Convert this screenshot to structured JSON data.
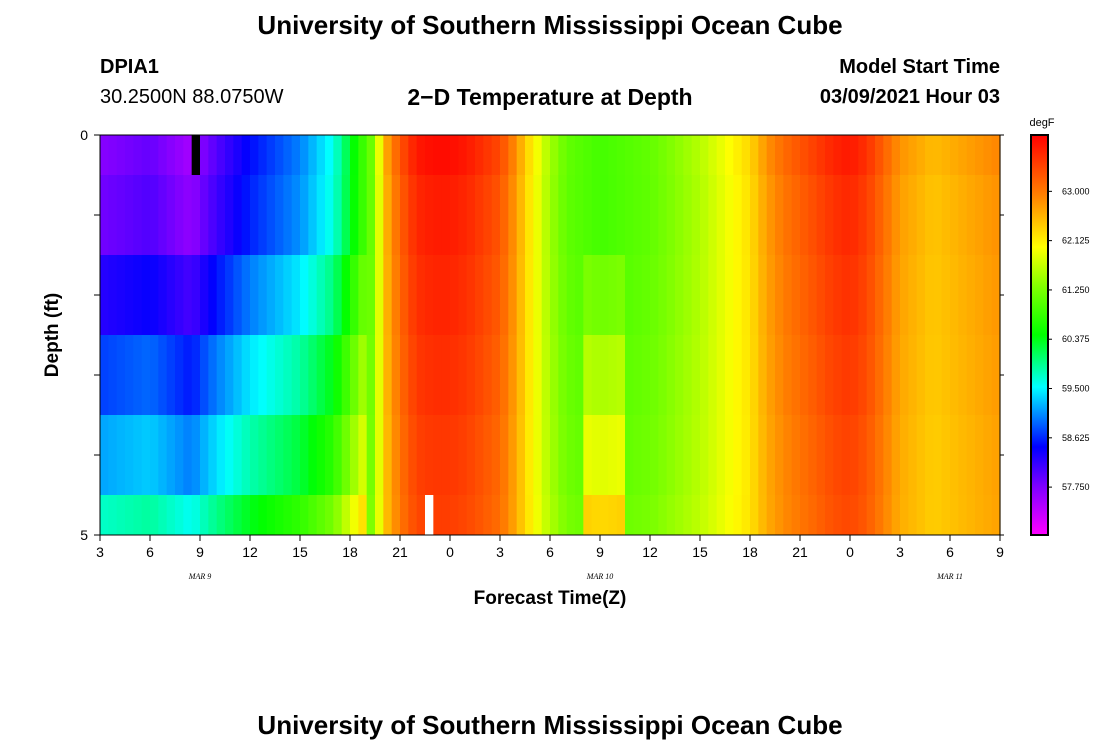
{
  "header": {
    "title": "University of Southern Mississippi Ocean Cube",
    "station": "DPIA1",
    "coords": "30.2500N 88.0750W",
    "heading": "2−D Temperature at Depth",
    "model_start_label": "Model Start Time",
    "model_start_value": "03/09/2021 Hour 03"
  },
  "footer": {
    "title": "University of Southern Mississippi Ocean Cube"
  },
  "chart_data": {
    "type": "heatmap",
    "xlabel": "Forecast Time(Z)",
    "ylabel": "Depth (ft)",
    "x_tick_labels": [
      "3",
      "6",
      "9",
      "12",
      "15",
      "18",
      "21",
      "0",
      "3",
      "6",
      "9",
      "12",
      "15",
      "18",
      "21",
      "0",
      "3",
      "6",
      "9"
    ],
    "x_date_labels": [
      "MAR  9",
      "MAR  10",
      "MAR  11"
    ],
    "y_tick_labels": [
      "0",
      "5"
    ],
    "ylim": [
      0,
      5
    ],
    "x_hours_range": [
      0,
      54
    ],
    "colorbar": {
      "unit": "degF",
      "tick_labels": [
        "57.750",
        "58.625",
        "59.500",
        "60.375",
        "61.250",
        "62.125",
        "63.000"
      ],
      "range": [
        56.9,
        64.0
      ]
    },
    "colors": {
      "missing_high": "#000000",
      "missing_low": "#ffffff"
    },
    "layers_ft": [
      [
        0,
        0.5
      ],
      [
        0.5,
        1.5
      ],
      [
        1.5,
        2.5
      ],
      [
        2.5,
        3.5
      ],
      [
        3.5,
        4.5
      ],
      [
        4.5,
        5
      ]
    ],
    "profile_time_hours": [
      0,
      3,
      5.5,
      6,
      7,
      9,
      12,
      14,
      15,
      16,
      16.5,
      17,
      18,
      19,
      20,
      21,
      22,
      24,
      25,
      25.5,
      26,
      27,
      28,
      30,
      33,
      36,
      39,
      40,
      41,
      42,
      44,
      45,
      46,
      47,
      48,
      50,
      52,
      54
    ],
    "profile_temp_degF": [
      57.7,
      57.9,
      57.5,
      57.7,
      58.0,
      58.5,
      59.0,
      59.6,
      60.3,
      61.0,
      61.3,
      62.5,
      63.3,
      63.8,
      63.9,
      63.9,
      63.8,
      63.4,
      62.8,
      62.4,
      62.1,
      61.5,
      61.1,
      60.9,
      61.1,
      61.6,
      62.3,
      62.8,
      63.1,
      63.3,
      63.7,
      63.8,
      63.6,
      63.2,
      62.8,
      62.5,
      62.7,
      62.9
    ],
    "layer_offsets_degF": [
      0.0,
      0.0,
      0.3,
      0.65,
      0.95,
      1.4
    ],
    "missing_cells": [
      {
        "hour": 5.5,
        "depth_ft": [
          0,
          0.5
        ],
        "kind": "high"
      },
      {
        "hour": 19.5,
        "depth_ft": [
          4.5,
          5
        ],
        "kind": "low"
      }
    ]
  }
}
